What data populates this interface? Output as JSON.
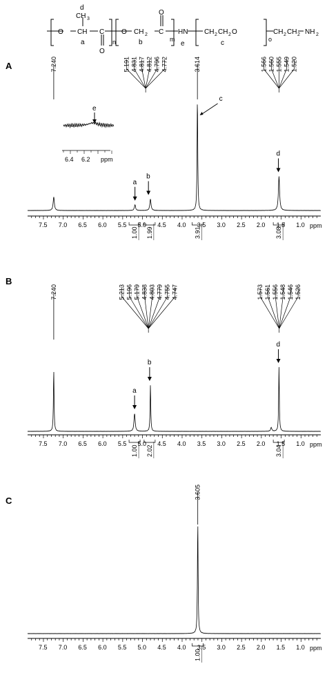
{
  "structure": {
    "labels": {
      "d": "d",
      "ch3": "CH",
      "ch3_sub": "3",
      "o1": "O",
      "ch": "CH",
      "c1": "C",
      "a": "a",
      "o_down": "O",
      "n": "n",
      "o2": "O",
      "ch2": "CH",
      "ch2_sub": "2",
      "c2": "C",
      "o_up": "O",
      "b": "b",
      "m": "m",
      "hn": "HN",
      "e": "e",
      "ch2ch2o": "CH",
      "sub2a": "2",
      "ch2b": "CH",
      "sub2b": "2",
      "o3": "O",
      "c": "c",
      "o": "o",
      "ch2ch2": "CH",
      "sub2c": "2",
      "ch2d": "CH",
      "sub2d": "2",
      "nh2": "NH",
      "sub2e": "2"
    }
  },
  "chart_data": [
    {
      "type": "line",
      "panel": "A",
      "xlabel": "ppm",
      "xlim": [
        7.9,
        0.5
      ],
      "xticks": [
        "7.5",
        "7.0",
        "6.5",
        "6.0",
        "5.5",
        "5.0",
        "4.5",
        "4.0",
        "3.5",
        "3.0",
        "2.5",
        "2.0",
        "1.5",
        "1.0"
      ],
      "peaks": [
        {
          "ppm": 7.24,
          "height": 0.12
        },
        {
          "ppm": 5.19,
          "height": 0.05
        },
        {
          "ppm": 4.8,
          "height": 0.1
        },
        {
          "ppm": 3.614,
          "height": 1.0
        },
        {
          "ppm": 1.555,
          "height": 0.3
        }
      ],
      "peak_tops": [
        {
          "label": "7.240",
          "ppm": 7.24
        },
        {
          "label": "3.614",
          "ppm": 3.614
        }
      ],
      "fan_groups": [
        {
          "center_ppm": 4.92,
          "labels": [
            "5.191",
            "4.831",
            "4.817",
            "4.812",
            "4.796",
            "4.772"
          ]
        },
        {
          "center_ppm": 1.555,
          "labels": [
            "1.566",
            "1.560",
            "1.555",
            "1.549",
            "1.520"
          ]
        }
      ],
      "peak_letters": [
        {
          "letter": "a",
          "ppm": 5.19
        },
        {
          "letter": "b",
          "ppm": 4.85
        },
        {
          "letter": "c",
          "ppm": 3.45
        },
        {
          "letter": "d",
          "ppm": 1.57
        }
      ],
      "integrals": [
        {
          "ppm": 5.2,
          "value": "1.00"
        },
        {
          "ppm": 4.82,
          "value": "1.99"
        },
        {
          "ppm": 3.61,
          "value": "3.91"
        },
        {
          "ppm": 1.56,
          "value": "3.08"
        }
      ],
      "inset": {
        "letter": "e",
        "xlabel": "ppm",
        "ticks": [
          "6.4",
          "6.2"
        ]
      }
    },
    {
      "type": "line",
      "panel": "B",
      "xlabel": "ppm",
      "xlim": [
        7.9,
        0.5
      ],
      "xticks": [
        "7.5",
        "7.0",
        "6.5",
        "6.0",
        "5.5",
        "5.0",
        "4.5",
        "4.0",
        "3.5",
        "3.0",
        "2.5",
        "2.0",
        "1.5",
        "1.0"
      ],
      "peaks": [
        {
          "ppm": 7.24,
          "height": 0.95
        },
        {
          "ppm": 5.2,
          "height": 0.28
        },
        {
          "ppm": 4.8,
          "height": 0.72
        },
        {
          "ppm": 1.75,
          "height": 0.06
        },
        {
          "ppm": 1.555,
          "height": 1.0
        }
      ],
      "peak_tops": [
        {
          "label": "7.240",
          "ppm": 7.24
        }
      ],
      "fan_groups": [
        {
          "center_ppm": 4.85,
          "labels": [
            "5.213",
            "5.196",
            "5.179",
            "4.838",
            "4.803",
            "4.779",
            "4.755",
            "4.747"
          ]
        },
        {
          "center_ppm": 1.55,
          "labels": [
            "1.573",
            "1.561",
            "1.556",
            "1.548",
            "1.546",
            "1.526"
          ]
        }
      ],
      "peak_letters": [
        {
          "letter": "a",
          "ppm": 5.2
        },
        {
          "letter": "b",
          "ppm": 4.82
        },
        {
          "letter": "d",
          "ppm": 1.57
        }
      ],
      "integrals": [
        {
          "ppm": 5.2,
          "value": "1.00"
        },
        {
          "ppm": 4.82,
          "value": "2.02"
        },
        {
          "ppm": 1.56,
          "value": "3.04"
        }
      ]
    },
    {
      "type": "line",
      "panel": "C",
      "xlabel": "ppm",
      "xlim": [
        7.9,
        0.5
      ],
      "xticks": [
        "7.5",
        "7.0",
        "6.5",
        "6.0",
        "5.5",
        "5.0",
        "4.5",
        "4.0",
        "3.5",
        "3.0",
        "2.5",
        "2.0",
        "1.5",
        "1.0"
      ],
      "peaks": [
        {
          "ppm": 3.605,
          "height": 1.0
        }
      ],
      "peak_tops": [
        {
          "label": "3.605",
          "ppm": 3.605
        }
      ],
      "fan_groups": [],
      "peak_letters": [],
      "integrals": [
        {
          "ppm": 3.61,
          "value": "1.00"
        }
      ]
    }
  ]
}
